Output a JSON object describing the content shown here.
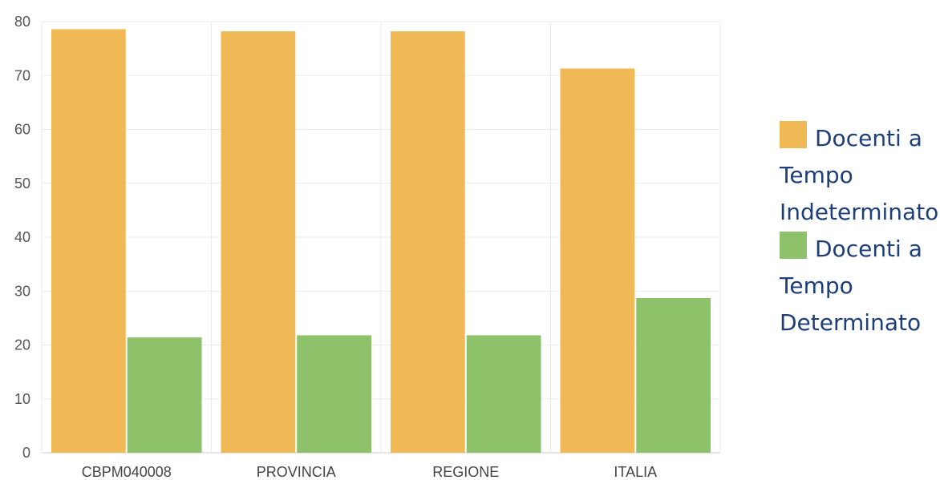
{
  "chart_data": {
    "type": "bar",
    "categories": [
      "CBPM040008",
      "PROVINCIA",
      "REGIONE",
      "ITALIA"
    ],
    "series": [
      {
        "name": "Docenti a Tempo Indeterminato",
        "color": "#f0b956",
        "values": [
          78.6,
          78.2,
          78.2,
          71.3
        ]
      },
      {
        "name": "Docenti a Tempo Determinato",
        "color": "#8dc26a",
        "values": [
          21.4,
          21.8,
          21.8,
          28.7
        ]
      }
    ],
    "ylim": [
      0,
      80
    ],
    "yticks": [
      0,
      10,
      20,
      30,
      40,
      50,
      60,
      70,
      80
    ],
    "grid": true,
    "legend_position": "right"
  }
}
